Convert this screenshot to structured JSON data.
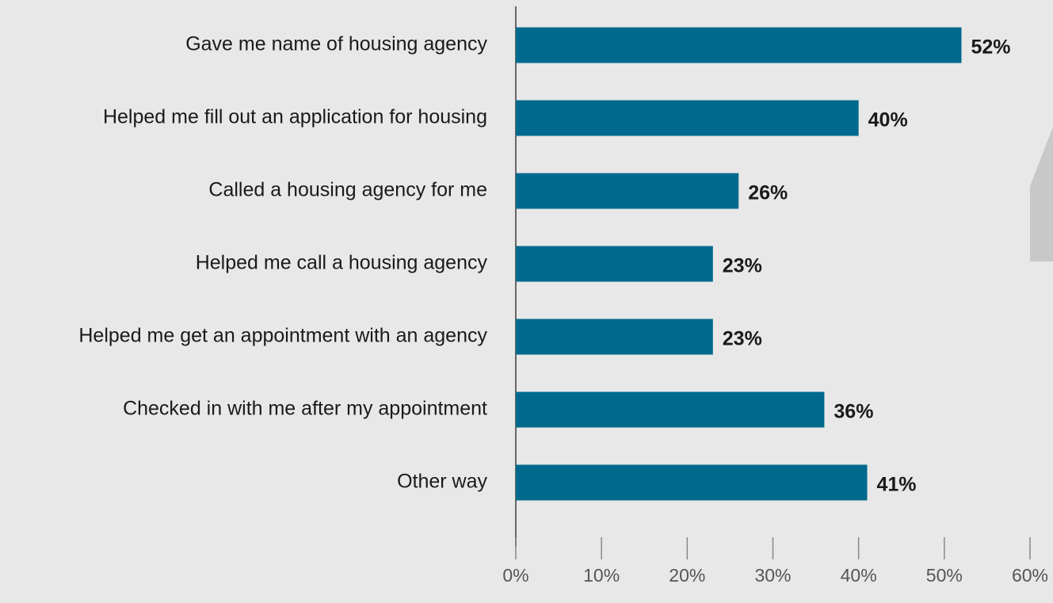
{
  "chart_data": {
    "type": "bar",
    "orientation": "horizontal",
    "categories": [
      "Gave me name of housing agency",
      "Helped me fill out an application for housing",
      "Called a housing agency for me",
      "Helped me call a housing agency",
      "Helped me get an appointment with an agency",
      "Checked in with me after my appointment",
      "Other way"
    ],
    "values": [
      52,
      40,
      26,
      23,
      23,
      36,
      41
    ],
    "value_labels": [
      "52%",
      "40%",
      "26%",
      "23%",
      "23%",
      "36%",
      "41%"
    ],
    "color": "#006a8e",
    "xlim": [
      0,
      60
    ],
    "xticks": [
      {
        "value": 0,
        "label": "0%"
      },
      {
        "value": 10,
        "label": "10%"
      },
      {
        "value": 20,
        "label": "20%"
      },
      {
        "value": 30,
        "label": "30%"
      },
      {
        "value": 40,
        "label": "40%"
      },
      {
        "value": 50,
        "label": "50%"
      },
      {
        "value": 60,
        "label": "60%"
      }
    ],
    "grid": false
  }
}
